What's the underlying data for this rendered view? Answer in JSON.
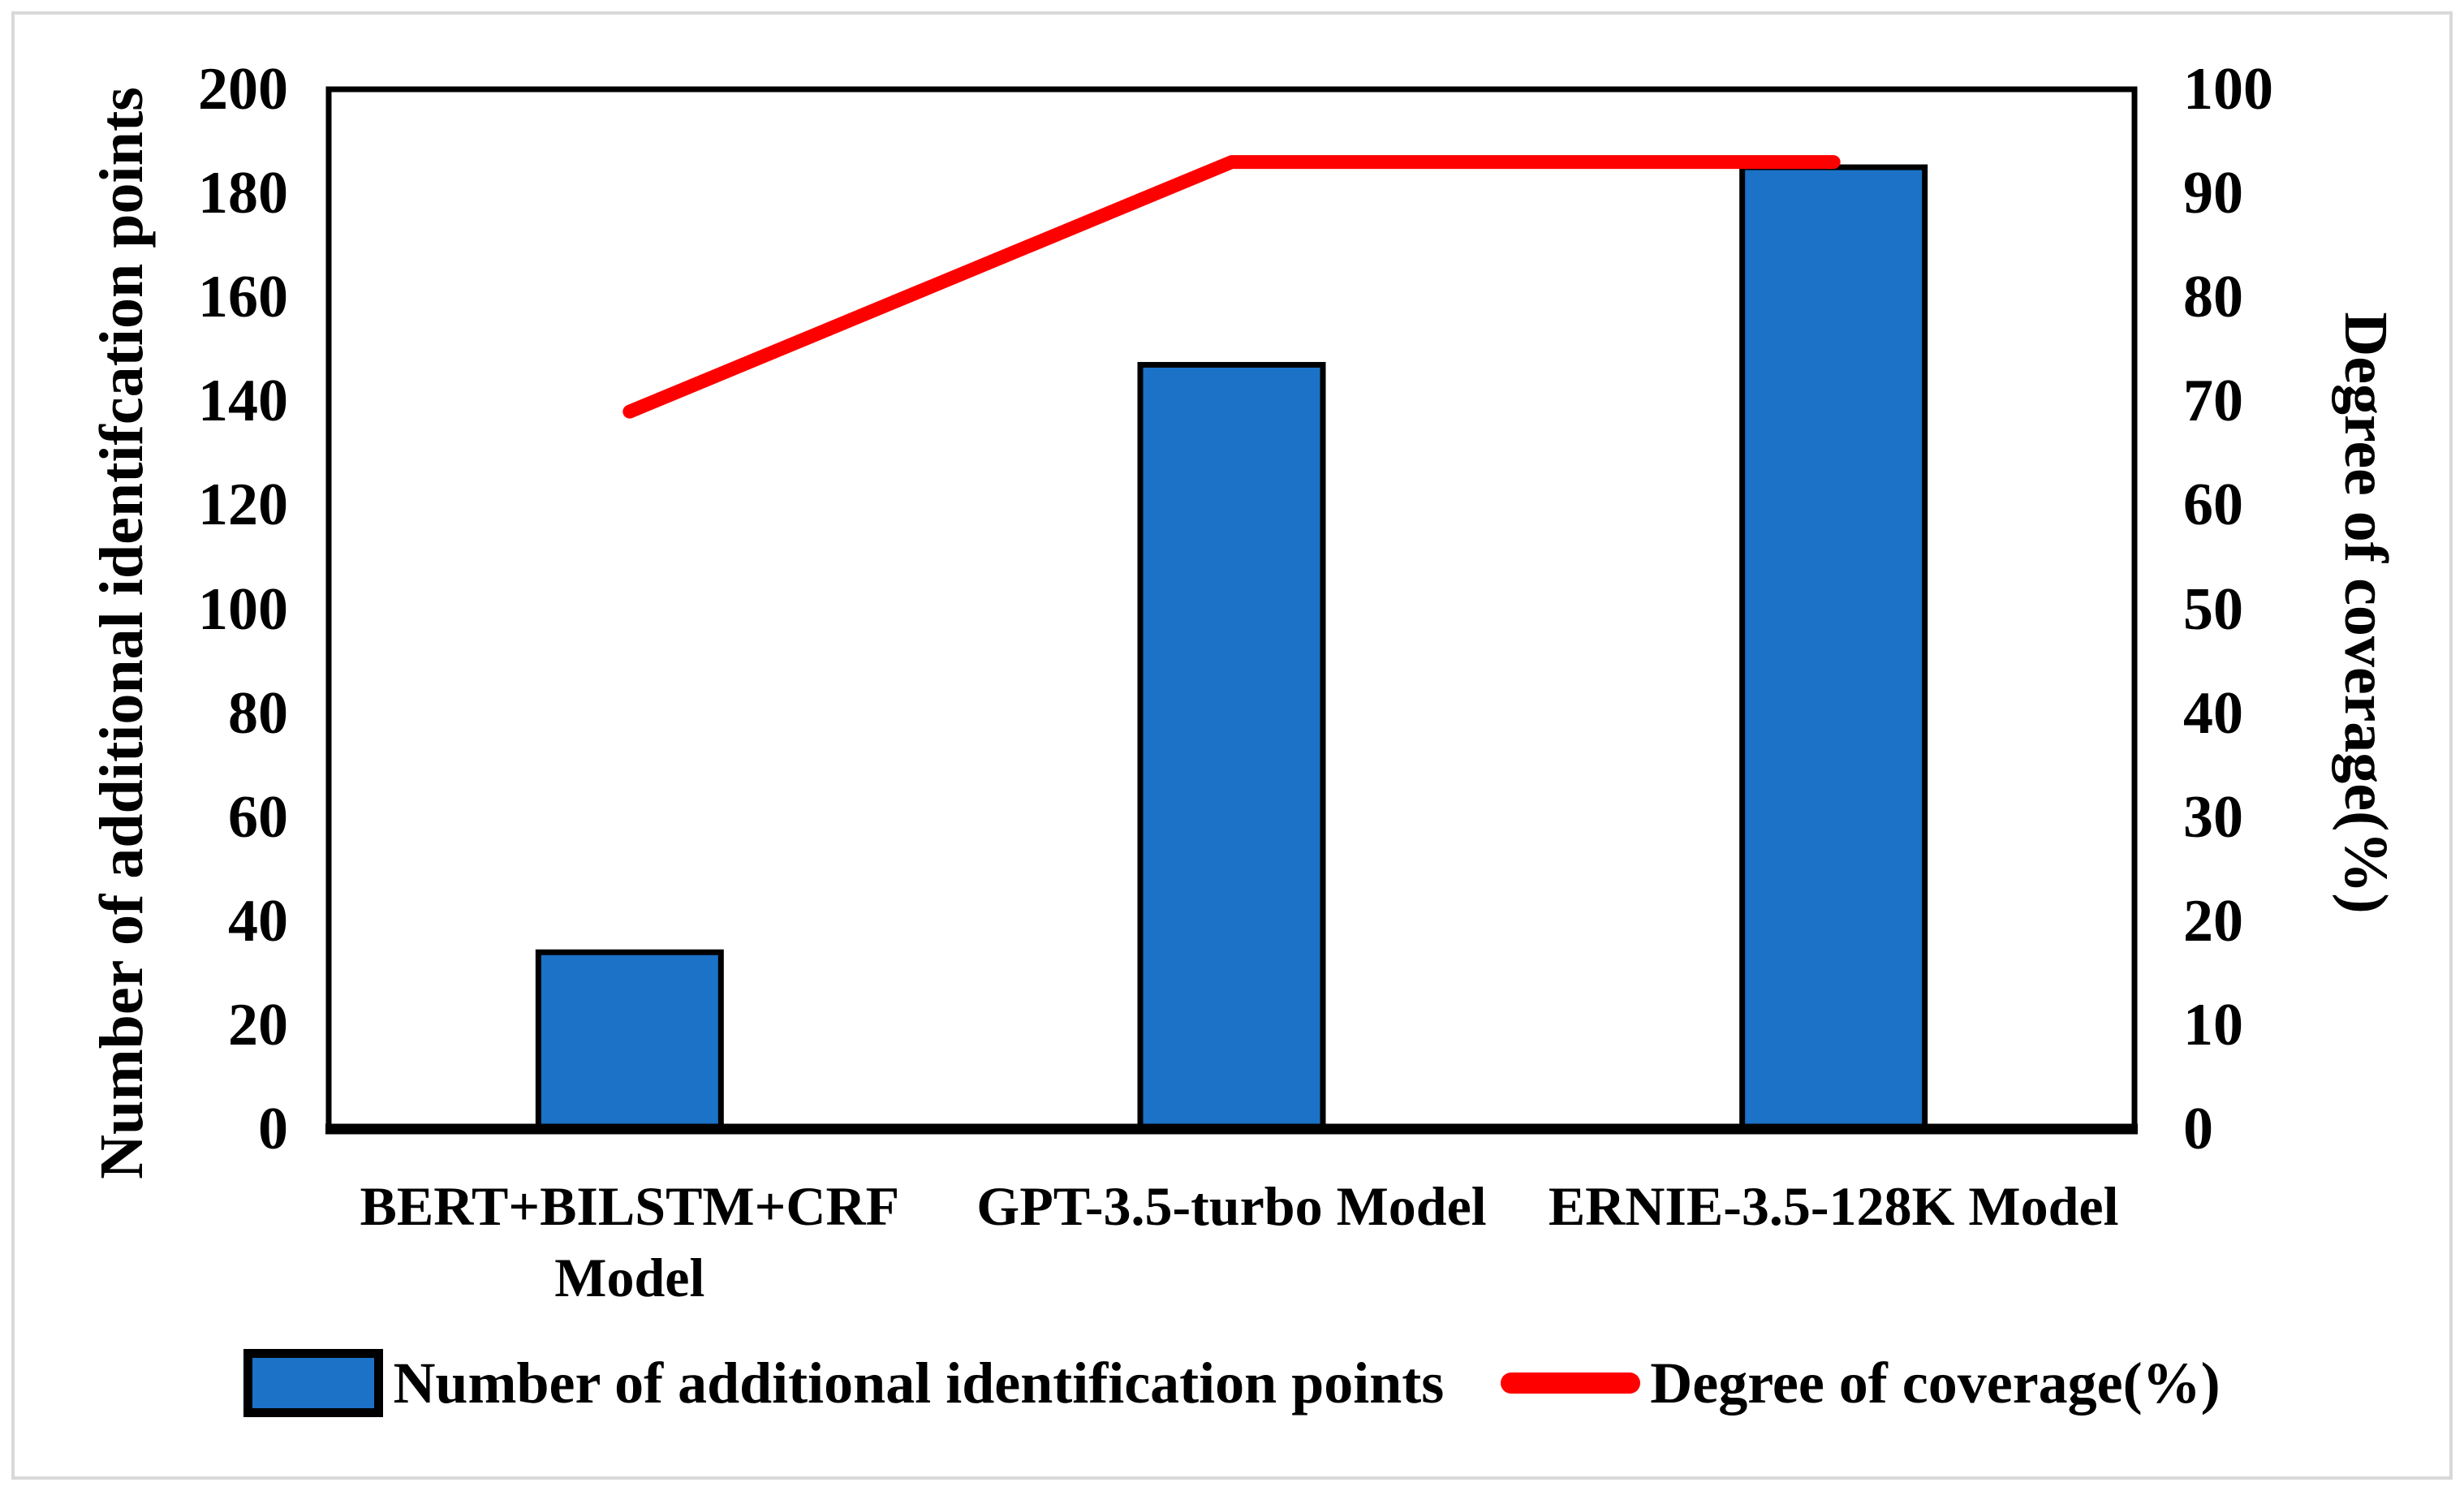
{
  "figure": {
    "background_color": "#ffffff",
    "frame_border_color": "#d9d9d9",
    "plot_border_color": "#000000"
  },
  "chart_data": {
    "type": "bar+line combo",
    "categories": [
      "BERT+BILSTM+CRF Model",
      "GPT-3.5-turbo Model",
      "ERNIE-3.5-128K Model"
    ],
    "series": [
      {
        "name": "Number of additional identification points",
        "type": "bar",
        "axis": "left",
        "values": [
          34,
          147,
          185
        ],
        "color": "#1b72c7",
        "border_color": "#000000"
      },
      {
        "name": "Degree of coverage(%)",
        "type": "line",
        "axis": "right",
        "values": [
          69,
          93,
          93
        ],
        "color": "#ff0000"
      }
    ],
    "left_axis": {
      "title": "Number of additional identifcation points",
      "min": 0,
      "max": 200,
      "step": 20,
      "ticks": [
        0,
        20,
        40,
        60,
        80,
        100,
        120,
        140,
        160,
        180,
        200
      ]
    },
    "right_axis": {
      "title": "Degree of coverage(%)",
      "min": 0,
      "max": 100,
      "step": 10,
      "ticks": [
        0,
        10,
        20,
        30,
        40,
        50,
        60,
        70,
        80,
        90,
        100
      ]
    },
    "grid": false,
    "legend_position": "bottom"
  },
  "legend": {
    "items": [
      {
        "label": "Number of additional identification points",
        "marker": "bar-swatch"
      },
      {
        "label": "Degree of coverage(%)",
        "marker": "line-swatch"
      }
    ]
  }
}
